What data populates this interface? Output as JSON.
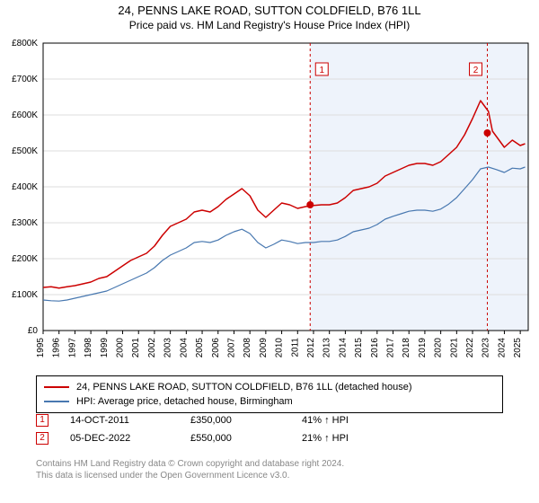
{
  "title": "24, PENNS LAKE ROAD, SUTTON COLDFIELD, B76 1LL",
  "subtitle": "Price paid vs. HM Land Registry's House Price Index (HPI)",
  "chart": {
    "type": "line",
    "background_color": "#ffffff",
    "grid_color": "#dddddd",
    "axis_color": "#000000",
    "tick_fontsize": 10,
    "ytick_color": "#000000",
    "xtick_color": "#000000",
    "xtick_rotation": -90,
    "ylim": [
      0,
      800000
    ],
    "ytick_step": 100000,
    "ytick_labels": [
      "£0",
      "£100K",
      "£200K",
      "£300K",
      "£400K",
      "£500K",
      "£600K",
      "£700K",
      "£800K"
    ],
    "xlim": [
      1995,
      2025.5
    ],
    "xtick_step": 1,
    "xtick_labels": [
      "1995",
      "1996",
      "1997",
      "1998",
      "1999",
      "2000",
      "2001",
      "2002",
      "2003",
      "2004",
      "2005",
      "2006",
      "2007",
      "2008",
      "2009",
      "2010",
      "2011",
      "2012",
      "2013",
      "2014",
      "2015",
      "2016",
      "2017",
      "2018",
      "2019",
      "2020",
      "2021",
      "2022",
      "2023",
      "2024",
      "2025"
    ],
    "shade_from_year": 2011.79,
    "shade_color": "#eef3fb",
    "series": [
      {
        "name": "24, PENNS LAKE ROAD, SUTTON COLDFIELD, B76 1LL (detached house)",
        "color": "#cc0000",
        "line_width": 1.5,
        "points_y_by_year": {
          "1995": 120000,
          "1995.5": 122000,
          "1996": 118000,
          "1996.5": 122000,
          "1997": 125000,
          "1997.5": 130000,
          "1998": 135000,
          "1998.5": 145000,
          "1999": 150000,
          "1999.5": 165000,
          "2000": 180000,
          "2000.5": 195000,
          "2001": 205000,
          "2001.5": 215000,
          "2002": 235000,
          "2002.5": 265000,
          "2003": 290000,
          "2003.5": 300000,
          "2004": 310000,
          "2004.5": 330000,
          "2005": 335000,
          "2005.5": 330000,
          "2006": 345000,
          "2006.5": 365000,
          "2007": 380000,
          "2007.5": 395000,
          "2008": 375000,
          "2008.5": 335000,
          "2009": 315000,
          "2009.5": 335000,
          "2010": 355000,
          "2010.5": 350000,
          "2011": 340000,
          "2011.5": 345000,
          "2012": 348000,
          "2012.5": 350000,
          "2013": 350000,
          "2013.5": 355000,
          "2014": 370000,
          "2014.5": 390000,
          "2015": 395000,
          "2015.5": 400000,
          "2016": 410000,
          "2016.5": 430000,
          "2017": 440000,
          "2017.5": 450000,
          "2018": 460000,
          "2018.5": 465000,
          "2019": 465000,
          "2019.5": 460000,
          "2020": 470000,
          "2020.5": 490000,
          "2021": 510000,
          "2021.5": 545000,
          "2022": 590000,
          "2022.5": 640000,
          "2023": 610000,
          "2023.25": 555000,
          "2023.5": 540000,
          "2024": 510000,
          "2024.5": 530000,
          "2025": 515000,
          "2025.3": 520000
        }
      },
      {
        "name": "HPI: Average price, detached house, Birmingham",
        "color": "#4878b0",
        "line_width": 1.2,
        "points_y_by_year": {
          "1995": 85000,
          "1995.5": 83000,
          "1996": 82000,
          "1996.5": 85000,
          "1997": 90000,
          "1997.5": 95000,
          "1998": 100000,
          "1998.5": 105000,
          "1999": 110000,
          "1999.5": 120000,
          "2000": 130000,
          "2000.5": 140000,
          "2001": 150000,
          "2001.5": 160000,
          "2002": 175000,
          "2002.5": 195000,
          "2003": 210000,
          "2003.5": 220000,
          "2004": 230000,
          "2004.5": 245000,
          "2005": 248000,
          "2005.5": 245000,
          "2006": 252000,
          "2006.5": 265000,
          "2007": 275000,
          "2007.5": 282000,
          "2008": 270000,
          "2008.5": 245000,
          "2009": 230000,
          "2009.5": 240000,
          "2010": 252000,
          "2010.5": 248000,
          "2011": 242000,
          "2011.5": 245000,
          "2012": 245000,
          "2012.5": 248000,
          "2013": 248000,
          "2013.5": 252000,
          "2014": 262000,
          "2014.5": 275000,
          "2015": 280000,
          "2015.5": 285000,
          "2016": 295000,
          "2016.5": 310000,
          "2017": 318000,
          "2017.5": 325000,
          "2018": 332000,
          "2018.5": 335000,
          "2019": 335000,
          "2019.5": 332000,
          "2020": 338000,
          "2020.5": 352000,
          "2021": 370000,
          "2021.5": 395000,
          "2022": 420000,
          "2022.5": 450000,
          "2023": 455000,
          "2023.5": 448000,
          "2024": 440000,
          "2024.5": 452000,
          "2025": 450000,
          "2025.3": 455000
        }
      }
    ],
    "event_markers": [
      {
        "label": "1",
        "year": 2011.79,
        "color": "#cc0000",
        "dash": "3,3",
        "point_y": 350000
      },
      {
        "label": "2",
        "year": 2022.93,
        "color": "#cc0000",
        "dash": "3,3",
        "point_y": 550000
      }
    ]
  },
  "legend": {
    "items": [
      {
        "color": "#cc0000",
        "text": "24, PENNS LAKE ROAD, SUTTON COLDFIELD, B76 1LL (detached house)"
      },
      {
        "color": "#4878b0",
        "text": "HPI: Average price, detached house, Birmingham"
      }
    ]
  },
  "transactions": [
    {
      "marker": "1",
      "marker_color": "#cc0000",
      "date": "14-OCT-2011",
      "price": "£350,000",
      "delta": "41% ↑ HPI"
    },
    {
      "marker": "2",
      "marker_color": "#cc0000",
      "date": "05-DEC-2022",
      "price": "£550,000",
      "delta": "21% ↑ HPI"
    }
  ],
  "attribution": {
    "line1": "Contains HM Land Registry data © Crown copyright and database right 2024.",
    "line2": "This data is licensed under the Open Government Licence v3.0.",
    "color": "#888888"
  }
}
